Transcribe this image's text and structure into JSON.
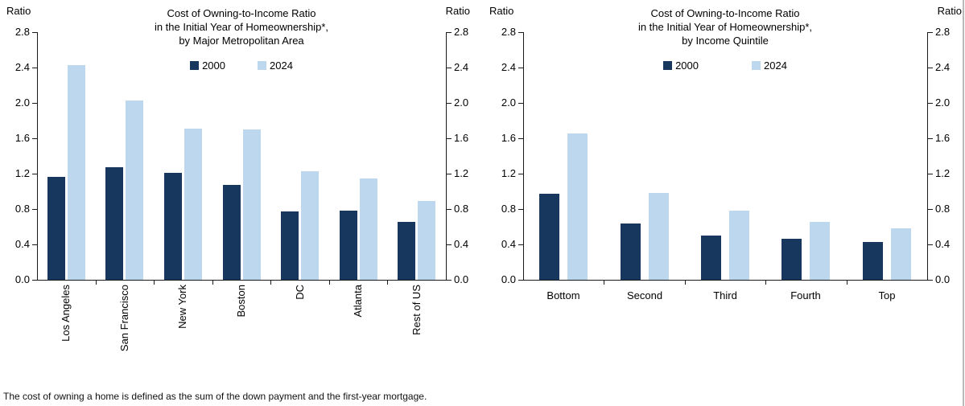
{
  "figure": {
    "footnote": "The cost of owning a home is defined as the sum of the down payment and the first-year mortgage."
  },
  "colors": {
    "bar_2000": "#17375e",
    "bar_2024": "#bdd7ee",
    "axis": "#1a1a1a",
    "text": "#000000"
  },
  "chart_data": [
    {
      "type": "bar",
      "title": "Cost of Owning-to-Income Ratio in the Initial Year of Homeownership*, by Major Metropolitan Area",
      "title_lines": [
        "Cost of Owning-to-Income Ratio",
        "in the Initial Year of Homeownership*,",
        "by Major Metropolitan Area"
      ],
      "ylabel_left": "Ratio",
      "ylabel_right": "Ratio",
      "ylim": [
        0.0,
        2.8
      ],
      "ytick_interval": 0.4,
      "yticks": [
        "2.8",
        "2.4",
        "2.0",
        "1.6",
        "1.2",
        "0.8",
        "0.4",
        "0.0"
      ],
      "grid": false,
      "legend_position": "top-center",
      "categories": [
        "Los Angeles",
        "San Francisco",
        "New York",
        "Boston",
        "DC",
        "Atlanta",
        "Rest of US"
      ],
      "series": [
        {
          "name": "2000",
          "color": "#17375e",
          "values": [
            1.16,
            1.27,
            1.21,
            1.07,
            0.77,
            0.78,
            0.65
          ]
        },
        {
          "name": "2024",
          "color": "#bdd7ee",
          "values": [
            2.43,
            2.03,
            1.71,
            1.7,
            1.23,
            1.15,
            0.89
          ]
        }
      ]
    },
    {
      "type": "bar",
      "title": "Cost of Owning-to-Income Ratio in the Initial Year of Homeownership*, by Income Quintile",
      "title_lines": [
        "Cost of Owning-to-Income Ratio",
        "in the Initial Year of Homeownership*,",
        "by Income Quintile"
      ],
      "ylabel_left": "Ratio",
      "ylabel_right": "Ratio",
      "ylim": [
        0.0,
        2.8
      ],
      "ytick_interval": 0.4,
      "yticks": [
        "2.8",
        "2.4",
        "2.0",
        "1.6",
        "1.2",
        "0.8",
        "0.4",
        "0.0"
      ],
      "grid": false,
      "legend_position": "top-center",
      "categories": [
        "Bottom",
        "Second",
        "Third",
        "Fourth",
        "Top"
      ],
      "series": [
        {
          "name": "2000",
          "color": "#17375e",
          "values": [
            0.97,
            0.64,
            0.5,
            0.46,
            0.43
          ]
        },
        {
          "name": "2024",
          "color": "#bdd7ee",
          "values": [
            1.65,
            0.98,
            0.78,
            0.65,
            0.58
          ]
        }
      ]
    }
  ]
}
